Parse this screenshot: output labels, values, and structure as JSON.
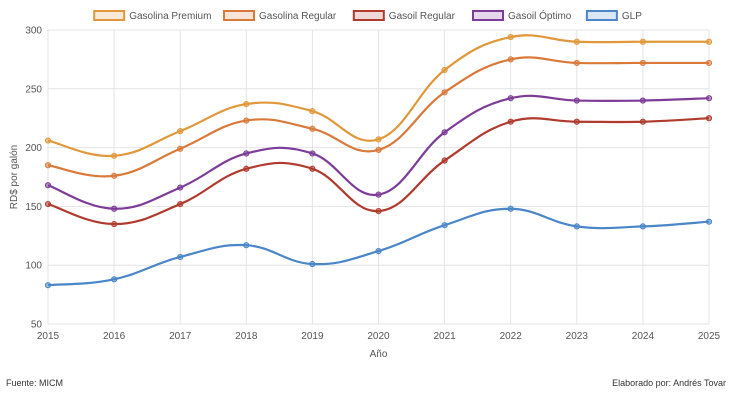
{
  "chart_data": {
    "type": "line",
    "title": "",
    "xlabel": "Año",
    "ylabel": "RD$ por galón",
    "x": [
      "2015",
      "2016",
      "2017",
      "2018",
      "2019",
      "2020",
      "2021",
      "2022",
      "2023",
      "2024",
      "2025"
    ],
    "ylim": [
      50,
      300
    ],
    "yticks": [
      50,
      100,
      150,
      200,
      250,
      300
    ],
    "grid": true,
    "legend_position": "top-center",
    "series": [
      {
        "name": "Gasolina Premium",
        "color": "#e0983a",
        "values": [
          206,
          193,
          214,
          237,
          231,
          207,
          266,
          294,
          290,
          290,
          290
        ]
      },
      {
        "name": "Gasolina Regular",
        "color": "#d97a3a",
        "values": [
          185,
          176,
          199,
          223,
          216,
          198,
          247,
          275,
          272,
          272,
          272
        ]
      },
      {
        "name": "Gasoil Regular",
        "color": "#b03a2e",
        "values": [
          152,
          135,
          152,
          182,
          182,
          146,
          189,
          222,
          222,
          222,
          225
        ]
      },
      {
        "name": "Gasoil Óptimo",
        "color": "#7d3c98",
        "values": [
          168,
          148,
          166,
          195,
          195,
          160,
          213,
          242,
          240,
          240,
          242
        ]
      },
      {
        "name": "GLP",
        "color": "#4a86c8",
        "values": [
          83,
          88,
          107,
          117,
          101,
          112,
          134,
          148,
          133,
          133,
          137
        ]
      }
    ]
  },
  "footer": {
    "source": "Fuente: MICM",
    "credit": "Elaborado por: Andrés Tovar"
  }
}
